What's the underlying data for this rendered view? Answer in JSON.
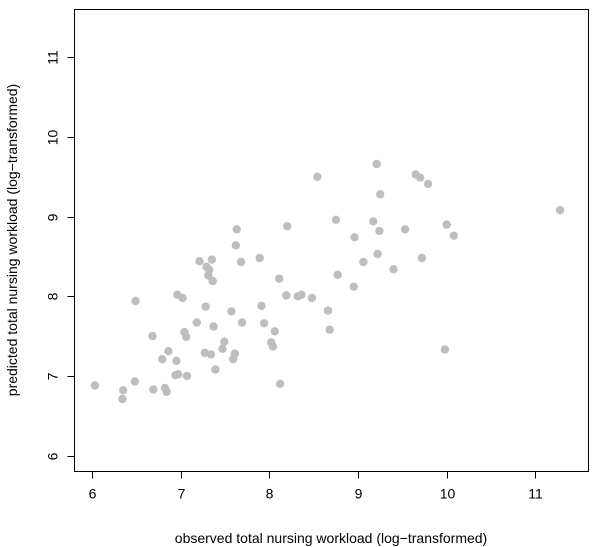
{
  "chart_data": {
    "type": "scatter",
    "title": "",
    "xlabel": "observed total nursing workload (log−transformed)",
    "ylabel": "predicted total nursing workload (log−transformed)",
    "xlim": [
      5.8,
      11.6
    ],
    "ylim": [
      5.8,
      11.6
    ],
    "x_ticks": [
      "6",
      "7",
      "8",
      "9",
      "10",
      "11"
    ],
    "y_ticks": [
      "6",
      "7",
      "8",
      "9",
      "10",
      "11"
    ],
    "grid": false,
    "legend": "none",
    "point_color": "#bebebe",
    "series": [
      {
        "x": [
          6.03,
          6.34,
          6.35,
          6.48,
          6.49,
          6.68,
          6.69,
          6.79,
          6.82,
          6.84,
          6.86,
          6.94,
          6.95,
          6.96,
          6.97,
          7.02,
          7.04,
          7.06,
          7.07,
          7.18,
          7.21,
          7.27,
          7.28,
          7.29,
          7.31,
          7.32,
          7.34,
          7.35,
          7.36,
          7.37,
          7.39,
          7.47,
          7.49,
          7.57,
          7.59,
          7.61,
          7.62,
          7.63,
          7.68,
          7.69,
          7.89,
          7.91,
          7.94,
          8.02,
          8.04,
          8.06,
          8.11,
          8.12,
          8.19,
          8.2,
          8.32,
          8.36,
          8.48,
          8.54,
          8.66,
          8.68,
          8.75,
          8.77,
          8.95,
          8.96,
          9.06,
          9.17,
          9.21,
          9.22,
          9.24,
          9.25,
          9.4,
          9.53,
          9.65,
          9.7,
          9.72,
          9.79,
          9.98,
          10.0,
          10.08,
          11.28
        ],
        "y": [
          6.88,
          6.71,
          6.82,
          6.93,
          7.94,
          7.5,
          6.83,
          7.21,
          6.85,
          6.8,
          7.31,
          7.01,
          7.19,
          8.02,
          7.02,
          7.98,
          7.55,
          7.49,
          7.0,
          7.67,
          8.44,
          7.29,
          7.87,
          8.37,
          8.26,
          8.33,
          7.27,
          8.46,
          8.19,
          7.62,
          7.08,
          7.34,
          7.43,
          7.81,
          7.21,
          7.28,
          8.64,
          8.84,
          8.43,
          7.67,
          8.48,
          7.88,
          7.66,
          7.42,
          7.37,
          7.56,
          8.22,
          6.9,
          8.01,
          8.88,
          8.0,
          8.02,
          7.98,
          9.5,
          7.82,
          7.58,
          8.96,
          8.27,
          8.12,
          8.74,
          8.43,
          8.94,
          9.66,
          8.53,
          8.82,
          9.28,
          8.34,
          8.84,
          9.53,
          9.49,
          8.48,
          9.41,
          7.33,
          8.9,
          8.76,
          9.08
        ]
      }
    ]
  }
}
